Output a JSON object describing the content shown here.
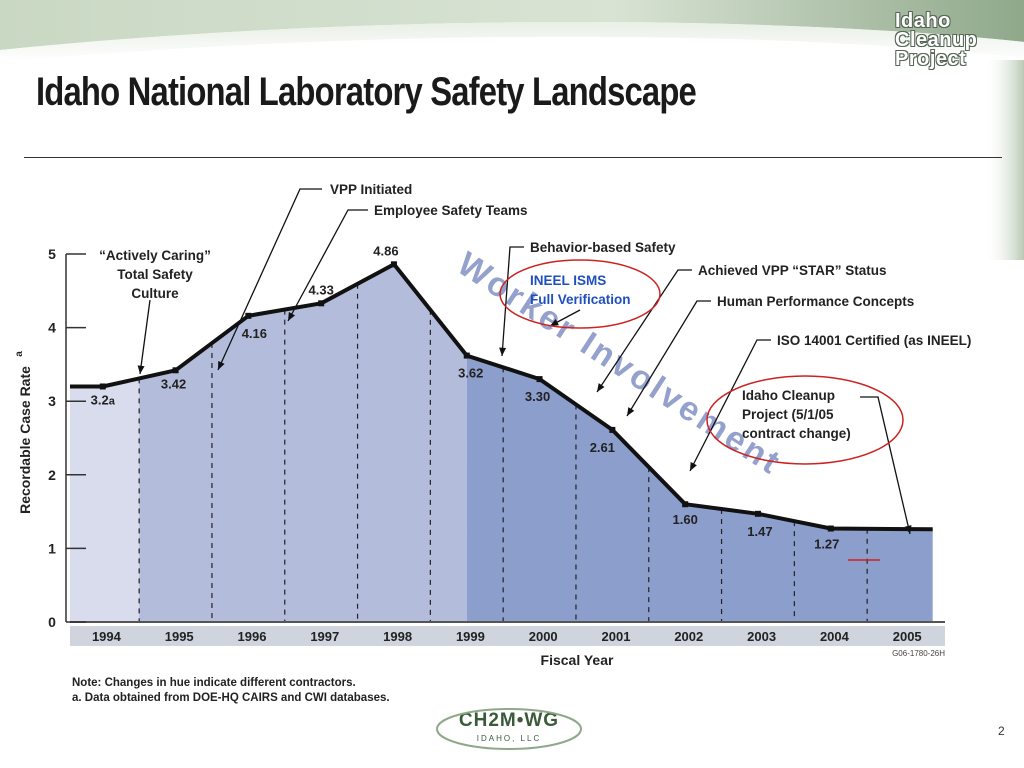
{
  "slide": {
    "title": "Idaho National Laboratory Safety Landscape",
    "logo_lines": [
      "Idaho",
      "Cleanup",
      "Project"
    ],
    "notes": [
      "Note: Changes in hue indicate different contractors.",
      "a. Data obtained from DOE-HQ CAIRS and CWI databases."
    ],
    "page_number": "2",
    "company_name": "CH2M•WG",
    "company_sub": "IDAHO, LLC"
  },
  "colors": {
    "band1": "#d8dcec",
    "band2": "#b4bcdc",
    "band3": "#8c9ecc",
    "circle": "#cc2222",
    "annotation_blue": "#1f4fbf",
    "watermark": "#3f55a6",
    "rule": "#cc2222"
  },
  "chart_data": {
    "type": "line",
    "xlabel": "Fiscal Year",
    "ylabel": "Recordable Case Rate",
    "ylabel_superscript": "a",
    "ylim": [
      0,
      5
    ],
    "yticks": [
      "0",
      "1",
      "2",
      "3",
      "4",
      "5"
    ],
    "categories": [
      "1994",
      "1995",
      "1996",
      "1997",
      "1998",
      "1999",
      "2000",
      "2001",
      "2002",
      "2003",
      "2004",
      "2005"
    ],
    "points": [
      {
        "x": 1994.45,
        "y": 3.2,
        "label": "3.2",
        "suffix": "a"
      },
      {
        "x": 1995.45,
        "y": 3.42,
        "label": "3.42"
      },
      {
        "x": 1996.45,
        "y": 4.16,
        "label": "4.16"
      },
      {
        "x": 1997.45,
        "y": 4.33,
        "label": "4.33"
      },
      {
        "x": 1998.45,
        "y": 4.86,
        "label": "4.86"
      },
      {
        "x": 1999.45,
        "y": 3.62,
        "label": "3.62"
      },
      {
        "x": 2000.45,
        "y": 3.3,
        "label": "3.30"
      },
      {
        "x": 2001.45,
        "y": 2.61,
        "label": "2.61"
      },
      {
        "x": 2002.45,
        "y": 1.6,
        "label": "1.60"
      },
      {
        "x": 2003.45,
        "y": 1.47,
        "label": "1.47"
      },
      {
        "x": 2004.45,
        "y": 1.27,
        "label": "1.27"
      }
    ],
    "watermark_text": "Worker Involvement",
    "figure_code": "G06-1780-26H",
    "annotations": [
      {
        "text": "“Actively Caring”\nTotal Safety\nCulture"
      },
      {
        "text": "VPP Initiated"
      },
      {
        "text": "Employee Safety Teams"
      },
      {
        "text": "Behavior-based Safety"
      },
      {
        "text": "INEEL ISMS\nFull Verification"
      },
      {
        "text": "Achieved VPP “STAR” Status"
      },
      {
        "text": "Human Performance Concepts"
      },
      {
        "text": "ISO 14001 Certified (as INEEL)"
      },
      {
        "text": "Idaho Cleanup\nProject (5/1/05\ncontract change)"
      }
    ]
  }
}
